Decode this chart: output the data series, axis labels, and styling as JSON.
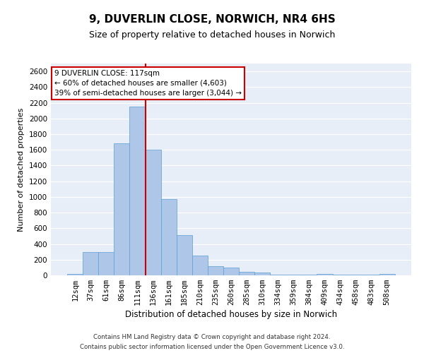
{
  "title": "9, DUVERLIN CLOSE, NORWICH, NR4 6HS",
  "subtitle": "Size of property relative to detached houses in Norwich",
  "xlabel": "Distribution of detached houses by size in Norwich",
  "ylabel": "Number of detached properties",
  "categories": [
    "12sqm",
    "37sqm",
    "61sqm",
    "86sqm",
    "111sqm",
    "136sqm",
    "161sqm",
    "185sqm",
    "210sqm",
    "235sqm",
    "260sqm",
    "285sqm",
    "310sqm",
    "334sqm",
    "359sqm",
    "384sqm",
    "409sqm",
    "434sqm",
    "458sqm",
    "483sqm",
    "508sqm"
  ],
  "values": [
    20,
    300,
    300,
    1680,
    2150,
    1600,
    970,
    510,
    250,
    120,
    100,
    45,
    35,
    10,
    10,
    5,
    15,
    5,
    5,
    5,
    20
  ],
  "bar_color": "#aec6e8",
  "bar_edge_color": "#5a9fd4",
  "vline_x": 4.5,
  "vline_color": "#cc0000",
  "annotation_text": "9 DUVERLIN CLOSE: 117sqm\n← 60% of detached houses are smaller (4,603)\n39% of semi-detached houses are larger (3,044) →",
  "annotation_box_color": "white",
  "annotation_box_edge": "#cc0000",
  "ylim": [
    0,
    2700
  ],
  "yticks": [
    0,
    200,
    400,
    600,
    800,
    1000,
    1200,
    1400,
    1600,
    1800,
    2000,
    2200,
    2400,
    2600
  ],
  "background_color": "#e8eef8",
  "footer1": "Contains HM Land Registry data © Crown copyright and database right 2024.",
  "footer2": "Contains public sector information licensed under the Open Government Licence v3.0.",
  "title_fontsize": 11,
  "subtitle_fontsize": 9,
  "xlabel_fontsize": 8.5,
  "ylabel_fontsize": 8,
  "tick_fontsize": 7.5,
  "annot_fontsize": 7.5
}
